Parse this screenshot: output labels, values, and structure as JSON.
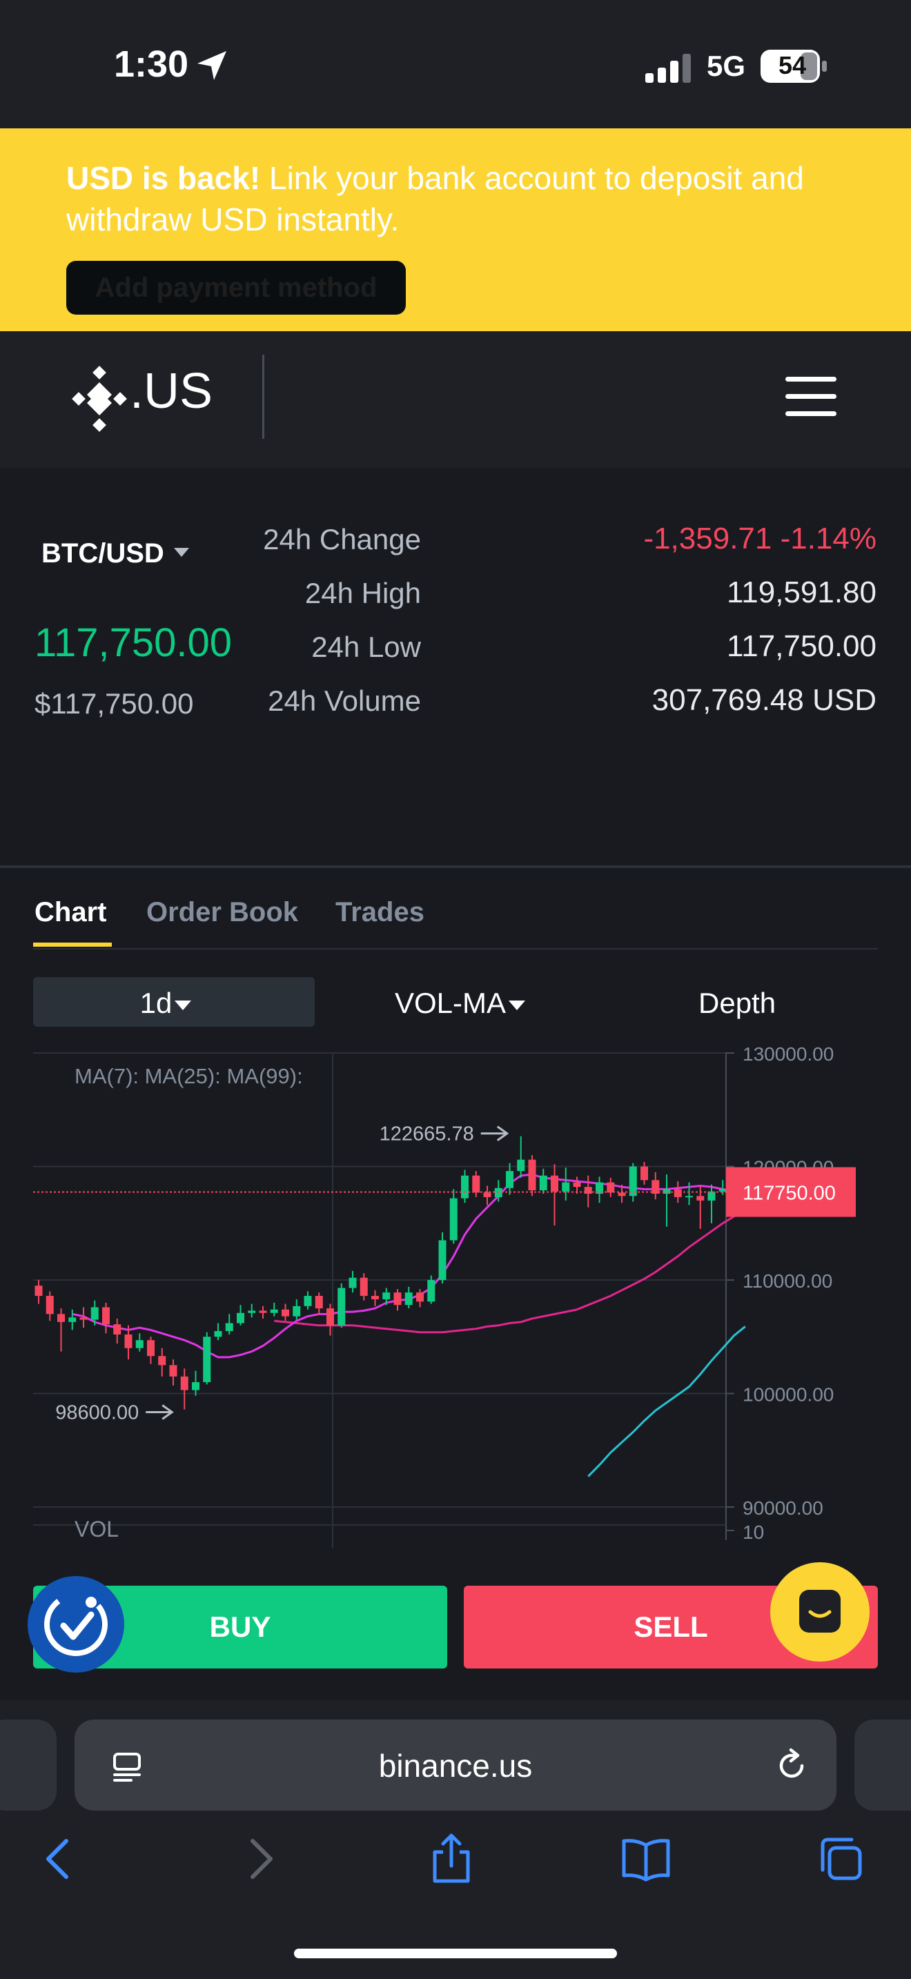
{
  "status_bar": {
    "time": "1:30",
    "network": "5G",
    "battery": "54"
  },
  "banner": {
    "headline": "USD is back!",
    "body": " Link your bank account to deposit and withdraw USD instantly.",
    "button_label": "Add payment method",
    "background": "#fcd535"
  },
  "header": {
    "logo_text": ".US",
    "logo_icon": "binance-logo-icon",
    "menu_icon": "hamburger-menu-icon"
  },
  "ticker": {
    "pair": "BTC/USD",
    "last_price": "117,750.00",
    "fiat_price": "$117,750.00",
    "stats": [
      {
        "label": "24h Change",
        "value": "-1,359.71 -1.14%"
      },
      {
        "label": "24h High",
        "value": "119,591.80"
      },
      {
        "label": "24h Low",
        "value": "117,750.00"
      },
      {
        "label": "24h Volume",
        "value": "307,769.48 USD"
      }
    ],
    "colors": {
      "up": "#0ecb81",
      "down": "#f6465d"
    }
  },
  "tabs": [
    {
      "label": "Chart",
      "active": true
    },
    {
      "label": "Order Book",
      "active": false
    },
    {
      "label": "Trades",
      "active": false
    }
  ],
  "toolbar": {
    "interval": "1d",
    "indicator": "VOL-MA",
    "depth": "Depth"
  },
  "chart": {
    "ma_legend": "MA(7):  MA(25):  MA(99):",
    "vol_label": "VOL",
    "high_marker": "122665.78",
    "low_marker": "98600.00",
    "current_price_tag": "117750.00",
    "y_ticks": [
      "130000.00",
      "120000.00",
      "110000.00",
      "100000.00",
      "90000.00"
    ],
    "vol_tick": "10"
  },
  "chart_data": {
    "type": "candlestick",
    "ylim": [
      90000,
      130000
    ],
    "current_price": 117750,
    "annotations": [
      {
        "label": "122665.78",
        "value": 122665.78
      },
      {
        "label": "98600.00",
        "value": 98600
      }
    ],
    "candles": [
      [
        109500,
        108600,
        110000,
        107900
      ],
      [
        108600,
        107000,
        109000,
        106400
      ],
      [
        107000,
        106300,
        107500,
        103700
      ],
      [
        106300,
        106700,
        107400,
        105600
      ],
      [
        106700,
        106500,
        107600,
        105800
      ],
      [
        106500,
        107600,
        108200,
        106000
      ],
      [
        107600,
        106100,
        108000,
        105300
      ],
      [
        106100,
        105200,
        106600,
        104400
      ],
      [
        105200,
        104000,
        106000,
        103000
      ],
      [
        104000,
        104700,
        105300,
        103700
      ],
      [
        104700,
        103300,
        105000,
        102600
      ],
      [
        103300,
        102500,
        104000,
        101500
      ],
      [
        102500,
        101500,
        103000,
        100700
      ],
      [
        101500,
        100300,
        102200,
        98600
      ],
      [
        100300,
        101000,
        102000,
        99800
      ],
      [
        101000,
        105000,
        105400,
        100800
      ],
      [
        105000,
        105500,
        106200,
        104700
      ],
      [
        105500,
        106200,
        107000,
        105200
      ],
      [
        106200,
        107100,
        107800,
        106000
      ],
      [
        107100,
        107300,
        107900,
        106700
      ],
      [
        107300,
        107100,
        107700,
        106600
      ],
      [
        107100,
        107400,
        108000,
        106800
      ],
      [
        107400,
        106800,
        107900,
        106400
      ],
      [
        106800,
        107700,
        108300,
        106500
      ],
      [
        107700,
        108600,
        109000,
        107400
      ],
      [
        108600,
        107500,
        108900,
        106900
      ],
      [
        107500,
        106000,
        107900,
        105100
      ],
      [
        106000,
        109300,
        109700,
        105800
      ],
      [
        109300,
        110200,
        110800,
        108900
      ],
      [
        110200,
        108600,
        110600,
        108200
      ],
      [
        108600,
        108300,
        109100,
        107700
      ],
      [
        108300,
        108900,
        109300,
        107800
      ],
      [
        108900,
        107800,
        109200,
        107300
      ],
      [
        107800,
        108900,
        109400,
        107500
      ],
      [
        108900,
        108100,
        109200,
        107600
      ],
      [
        108100,
        110000,
        110400,
        107900
      ],
      [
        110000,
        113500,
        114200,
        109700
      ],
      [
        113500,
        117200,
        118000,
        113200
      ],
      [
        117200,
        119200,
        119700,
        116800
      ],
      [
        119200,
        117700,
        119600,
        117300
      ],
      [
        117700,
        117300,
        118300,
        116600
      ],
      [
        117300,
        118100,
        118800,
        116900
      ],
      [
        118100,
        119600,
        120300,
        117500
      ],
      [
        119600,
        120600,
        122665.78,
        119000
      ],
      [
        120600,
        117900,
        121000,
        117400
      ],
      [
        117900,
        119200,
        119800,
        117600
      ],
      [
        119200,
        117800,
        120200,
        114800
      ],
      [
        117800,
        118600,
        119900,
        117000
      ],
      [
        118600,
        118200,
        119100,
        117600
      ],
      [
        118200,
        117600,
        119200,
        116400
      ],
      [
        117600,
        118600,
        119100,
        116800
      ],
      [
        118600,
        117700,
        119000,
        117300
      ],
      [
        117700,
        117400,
        118400,
        116800
      ],
      [
        117400,
        120000,
        120300,
        116900
      ],
      [
        120000,
        118800,
        120400,
        118400
      ],
      [
        118800,
        117600,
        119500,
        117100
      ],
      [
        117600,
        118000,
        119300,
        114700
      ],
      [
        118000,
        117300,
        118700,
        116800
      ],
      [
        117300,
        117400,
        118600,
        116600
      ],
      [
        117400,
        117000,
        118300,
        114500
      ],
      [
        117000,
        117800,
        118400,
        115000
      ],
      [
        117800,
        118000,
        118800,
        117500
      ],
      [
        118000,
        118800,
        119200,
        117700
      ],
      [
        118800,
        117750,
        119000,
        117300
      ]
    ],
    "ma7": [
      107000,
      106800,
      106300,
      106000,
      105800,
      105600,
      105800,
      105600,
      105300,
      105000,
      104700,
      104300,
      103700,
      103200,
      103200,
      103400,
      103700,
      104200,
      104900,
      105700,
      106400,
      106800,
      107000,
      107000,
      107200,
      107200,
      107300,
      107500,
      108000,
      108200,
      108300,
      108700,
      109300,
      110500,
      112100,
      114000,
      115400,
      116400,
      117400,
      118500,
      119200,
      119300,
      119000,
      118900,
      118800,
      118700,
      118600,
      118500,
      118400,
      118200,
      118100,
      118000,
      118000,
      118000,
      118100,
      118200,
      118300,
      118200,
      118000,
      117800,
      117800
    ],
    "ma25": [
      106400,
      106300,
      106200,
      106100,
      106000,
      106000,
      106000,
      106000,
      105900,
      105800,
      105700,
      105600,
      105500,
      105400,
      105400,
      105400,
      105500,
      105600,
      105700,
      105900,
      106000,
      106200,
      106300,
      106600,
      106800,
      107000,
      107200,
      107400,
      107800,
      108200,
      108600,
      109100,
      109600,
      110100,
      110700,
      111400,
      112100,
      112900,
      113600,
      114300,
      115000,
      115600,
      116100
    ],
    "ma99": [
      92700,
      93700,
      94800,
      95700,
      96600,
      97600,
      98500,
      99200,
      99900,
      100600,
      101700,
      102900,
      104000,
      105100,
      105900
    ]
  },
  "actions": {
    "buy": "BUY",
    "sell": "SELL"
  },
  "browser": {
    "url": "binance.us"
  }
}
